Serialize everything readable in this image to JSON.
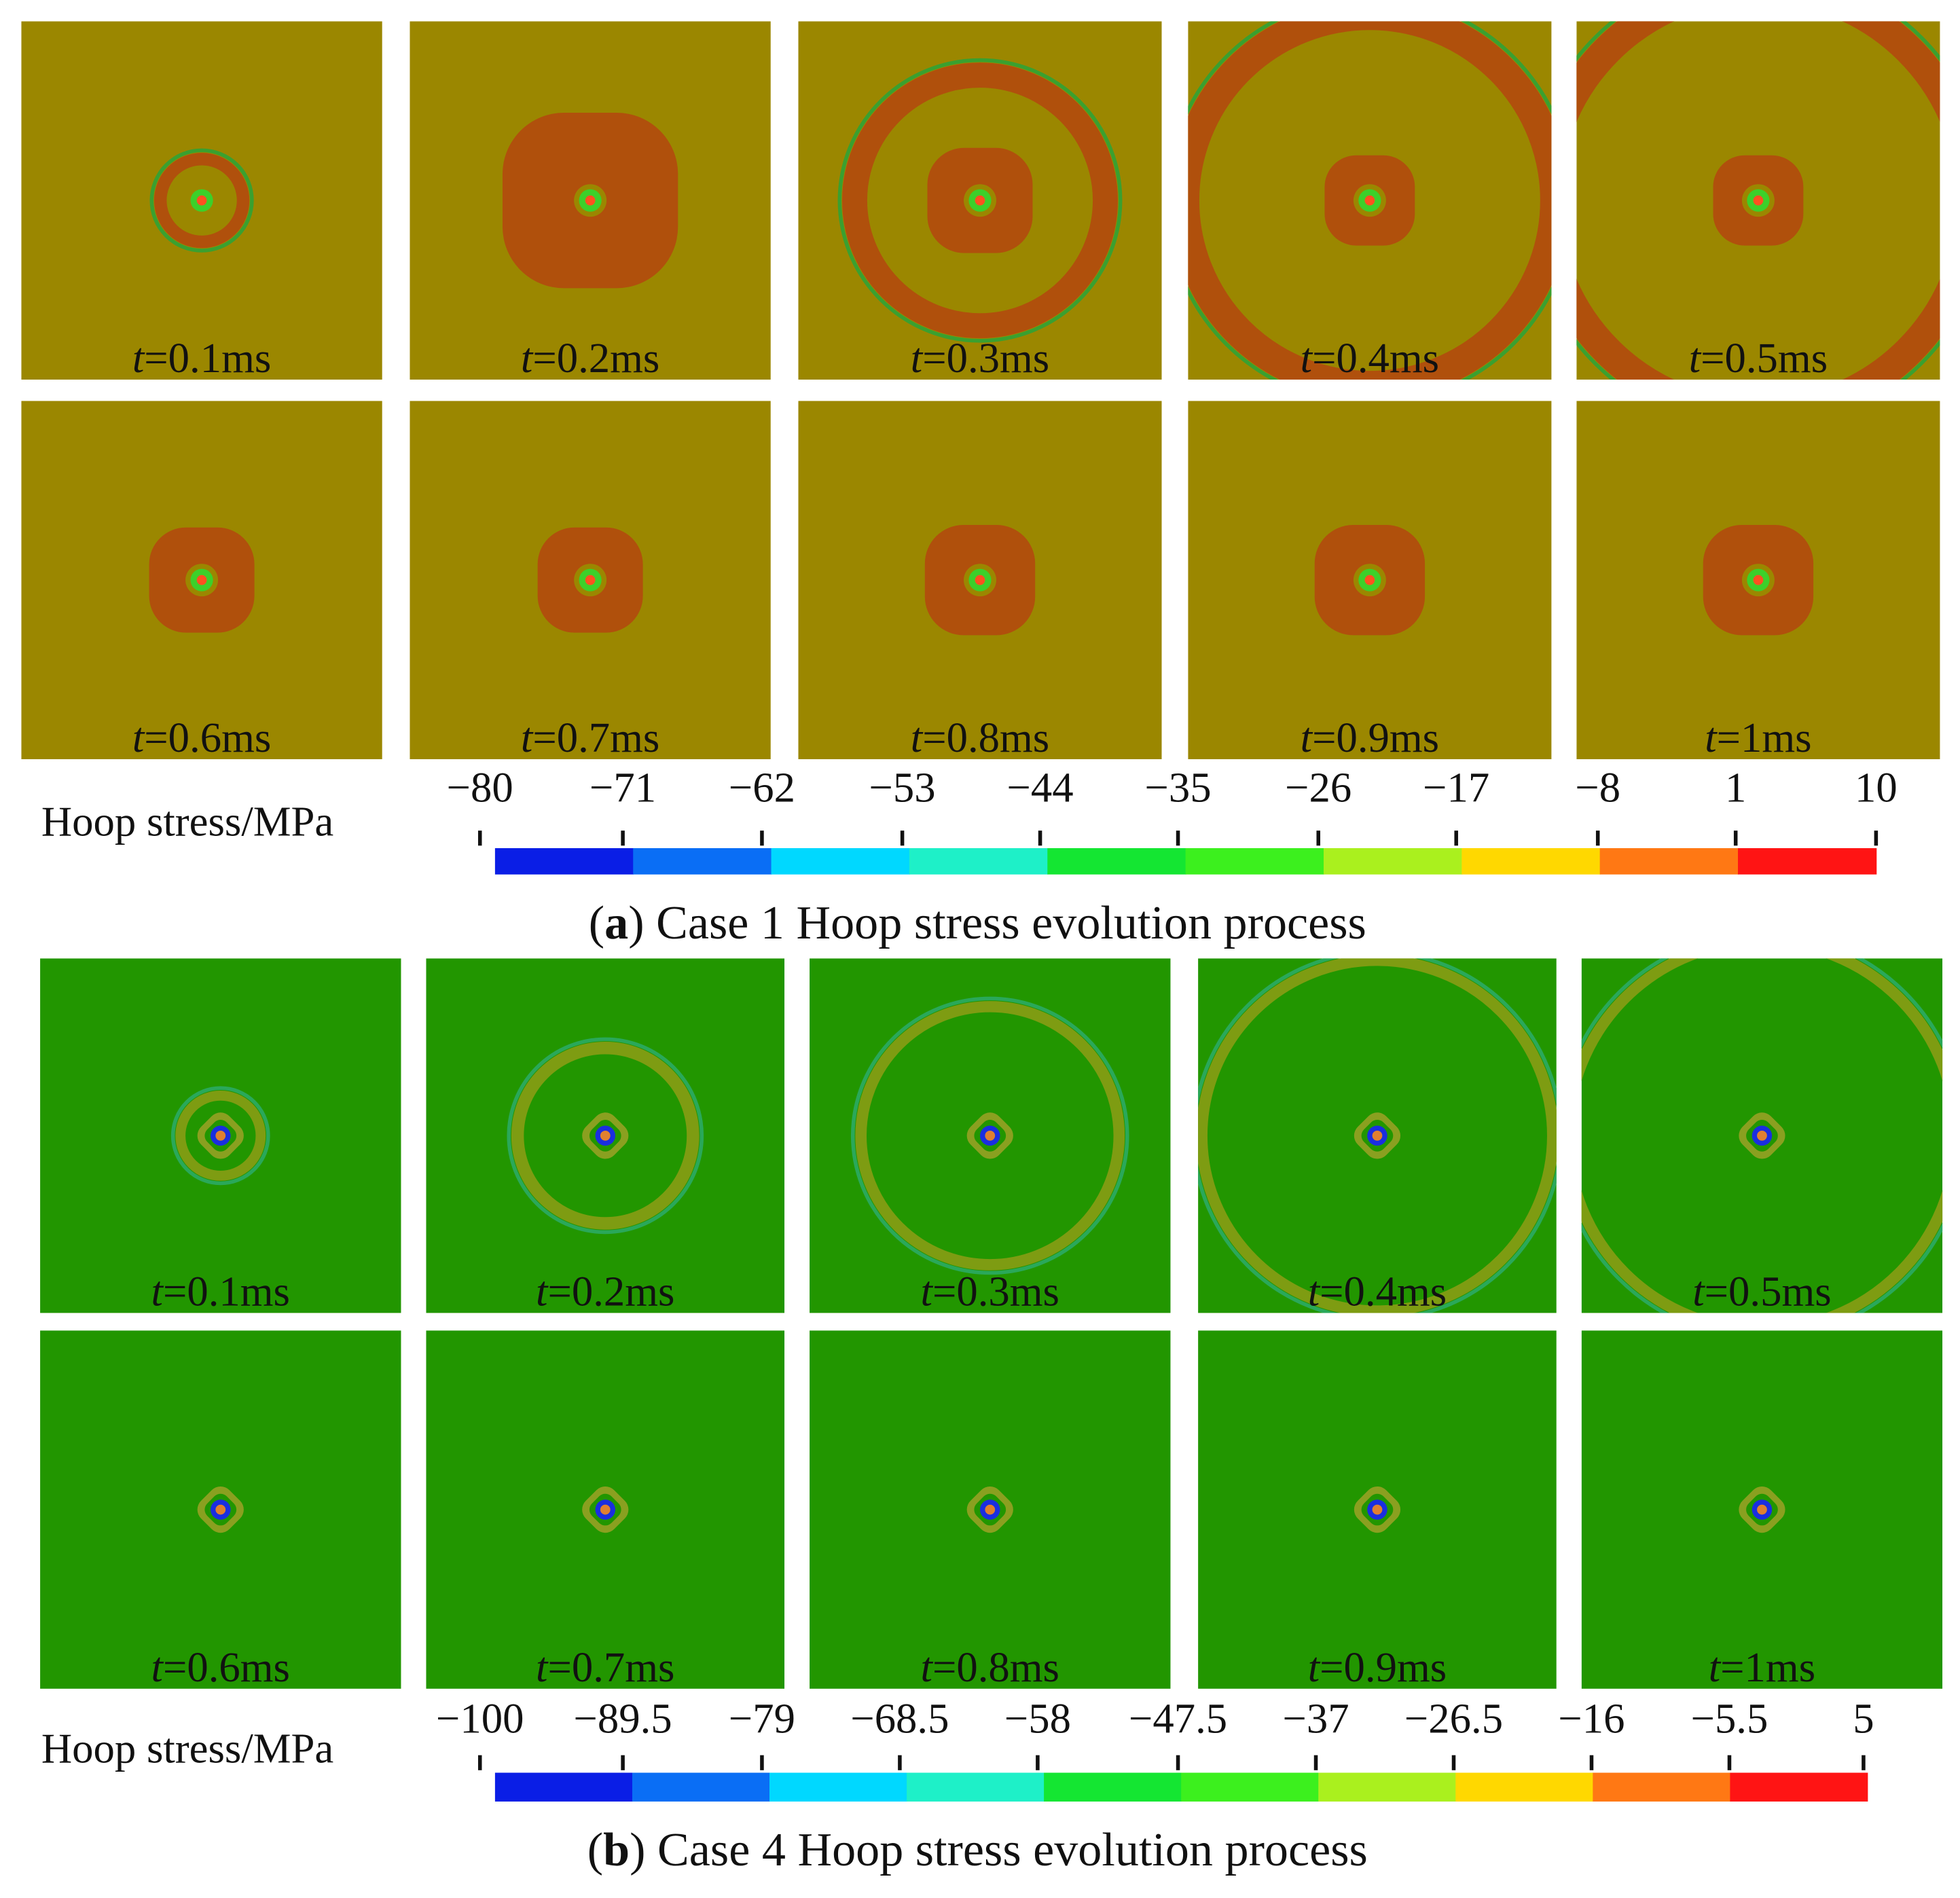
{
  "figure": {
    "parts": [
      {
        "panels": [
          {
            "var": "t",
            "rest": "=0.1ms"
          },
          {
            "var": "t",
            "rest": "=0.2ms"
          },
          {
            "var": "t",
            "rest": "=0.3ms"
          },
          {
            "var": "t",
            "rest": "=0.4ms"
          },
          {
            "var": "t",
            "rest": "=0.5ms"
          },
          {
            "var": "t",
            "rest": "=0.6ms"
          },
          {
            "var": "t",
            "rest": "=0.7ms"
          },
          {
            "var": "t",
            "rest": "=0.8ms"
          },
          {
            "var": "t",
            "rest": "=0.9ms"
          },
          {
            "var": "t",
            "rest": "=1ms"
          }
        ],
        "colorbar": {
          "label": "Hoop stress/MPa",
          "ticks": [
            "−80",
            "−71",
            "−62",
            "−53",
            "−44",
            "−35",
            "−26",
            "−17",
            "−8",
            "1",
            "10"
          ]
        },
        "caption": {
          "prefix": "(",
          "letter": "a",
          "text": ") Case 1 Hoop stress evolution process"
        }
      },
      {
        "panels": [
          {
            "var": "t",
            "rest": "=0.1ms"
          },
          {
            "var": "t",
            "rest": "=0.2ms"
          },
          {
            "var": "t",
            "rest": "=0.3ms"
          },
          {
            "var": "t",
            "rest": "=0.4ms"
          },
          {
            "var": "t",
            "rest": "=0.5ms"
          },
          {
            "var": "t",
            "rest": "=0.6ms"
          },
          {
            "var": "t",
            "rest": "=0.7ms"
          },
          {
            "var": "t",
            "rest": "=0.8ms"
          },
          {
            "var": "t",
            "rest": "=0.9ms"
          },
          {
            "var": "t",
            "rest": "=1ms"
          }
        ],
        "colorbar": {
          "label": "Hoop stress/MPa",
          "ticks": [
            "−100",
            "−89.5",
            "−79",
            "−68.5",
            "−58",
            "−47.5",
            "−37",
            "−26.5",
            "−16",
            "−5.5",
            "5"
          ]
        },
        "caption": {
          "prefix": "(",
          "letter": "b",
          "text": ") Case 4 Hoop stress evolution process"
        }
      }
    ]
  }
}
